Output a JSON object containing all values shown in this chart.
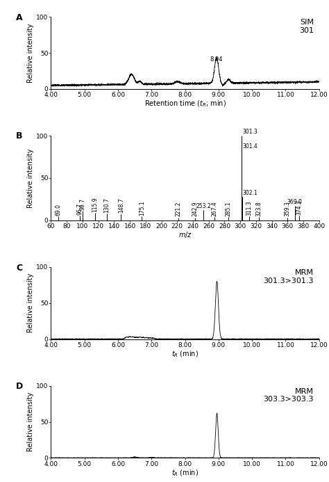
{
  "panel_A": {
    "label": "A",
    "annotation": "SIM\n301",
    "xlabel": "Retention time ($t_R$; min)",
    "ylabel": "Relative intensity",
    "xlim": [
      4.0,
      12.0
    ],
    "ylim": [
      0,
      100
    ],
    "xticks": [
      4.0,
      5.0,
      6.0,
      7.0,
      8.0,
      9.0,
      10.0,
      11.0,
      12.0
    ],
    "yticks": [
      0,
      50,
      100
    ],
    "ytick_labels": [
      "0",
      "50",
      "100"
    ],
    "peak_x": 8.94,
    "peak_label": "8.94",
    "peak_height": 35
  },
  "panel_B": {
    "label": "B",
    "xlabel": "$m/z$",
    "ylabel": "Relative intensity",
    "xlim": [
      60,
      400
    ],
    "ylim": [
      0,
      100
    ],
    "xticks": [
      60,
      80,
      100,
      120,
      140,
      160,
      180,
      200,
      220,
      240,
      260,
      280,
      300,
      320,
      340,
      360,
      380,
      400
    ],
    "yticks": [
      0,
      50,
      100
    ],
    "ytick_labels": [
      "0",
      "50",
      "100"
    ],
    "peaks": [
      {
        "mz": 69.0,
        "intensity": 4.5,
        "label": "69.0"
      },
      {
        "mz": 96.7,
        "intensity": 5.5,
        "label": "96.7"
      },
      {
        "mz": 99.7,
        "intensity": 11.0,
        "label": "99.7"
      },
      {
        "mz": 115.9,
        "intensity": 9.0,
        "label": "115.9"
      },
      {
        "mz": 130.7,
        "intensity": 8.0,
        "label": "130.7"
      },
      {
        "mz": 148.7,
        "intensity": 7.5,
        "label": "148.7"
      },
      {
        "mz": 175.1,
        "intensity": 4.5,
        "label": "175.1"
      },
      {
        "mz": 221.2,
        "intensity": 3.5,
        "label": "221.2"
      },
      {
        "mz": 242.9,
        "intensity": 3.5,
        "label": "242.9"
      },
      {
        "mz": 253.2,
        "intensity": 12.0,
        "label": "253.2"
      },
      {
        "mz": 267.4,
        "intensity": 4.0,
        "label": "267.4"
      },
      {
        "mz": 285.1,
        "intensity": 4.0,
        "label": "285.1"
      },
      {
        "mz": 301.3,
        "intensity": 100.0,
        "label": "301.3"
      },
      {
        "mz": 301.4,
        "intensity": 87.0,
        "label": "301.4"
      },
      {
        "mz": 302.1,
        "intensity": 28.0,
        "label": "302.1"
      },
      {
        "mz": 311.3,
        "intensity": 4.5,
        "label": "311.3"
      },
      {
        "mz": 323.8,
        "intensity": 4.0,
        "label": "323.8"
      },
      {
        "mz": 359.3,
        "intensity": 3.5,
        "label": "359.3"
      },
      {
        "mz": 369.0,
        "intensity": 17.0,
        "label": "369.0"
      },
      {
        "mz": 374.3,
        "intensity": 5.5,
        "label": "374.3"
      }
    ]
  },
  "panel_C": {
    "label": "C",
    "annotation": "MRM\n301.3>301.3",
    "xlabel": "$t_R$ (min)",
    "ylabel": "Relative intensity",
    "xlim": [
      4.0,
      12.0
    ],
    "ylim": [
      0,
      100
    ],
    "xticks": [
      4.0,
      5.0,
      6.0,
      7.0,
      8.0,
      9.0,
      10.0,
      11.0,
      12.0
    ],
    "yticks": [
      0,
      50,
      100
    ],
    "ytick_labels": [
      "0",
      "50",
      "100"
    ],
    "peak_x": 8.95,
    "peak_height": 80
  },
  "panel_D": {
    "label": "D",
    "annotation": "MRM\n303.3>303.3",
    "xlabel": "$t_R$ (min)",
    "ylabel": "Relative intensity",
    "xlim": [
      4.0,
      12.0
    ],
    "ylim": [
      0,
      100
    ],
    "xticks": [
      4.0,
      5.0,
      6.0,
      7.0,
      8.0,
      9.0,
      10.0,
      11.0,
      12.0
    ],
    "yticks": [
      0,
      50,
      100
    ],
    "ytick_labels": [
      "0",
      "50",
      "100"
    ],
    "peak_x": 8.95,
    "peak_height": 62
  },
  "background_color": "#ffffff",
  "line_color": "#000000",
  "fontsize_label": 7,
  "fontsize_tick": 6.5,
  "fontsize_panel_label": 9,
  "fontsize_annotation": 8,
  "fontsize_peak_label": 5.5
}
